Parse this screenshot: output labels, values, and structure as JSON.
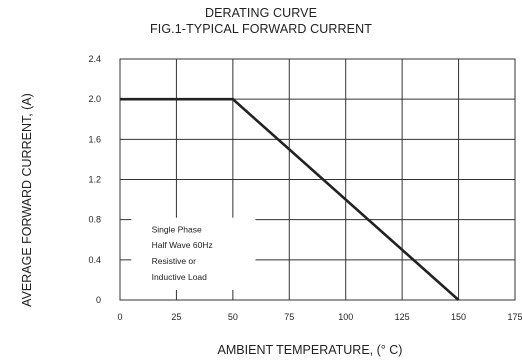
{
  "chart_data": {
    "type": "line",
    "title": "DERATING CURVE",
    "subtitle": "FIG.1-TYPICAL FORWARD CURRENT",
    "xlabel": "AMBIENT TEMPERATURE, (° C)",
    "ylabel": "AVERAGE FORWARD CURRENT,  (A)",
    "xlim": [
      0,
      175
    ],
    "ylim": [
      0,
      2.4
    ],
    "x_ticks": [
      "0",
      "25",
      "50",
      "75",
      "100",
      "125",
      "150",
      "175"
    ],
    "y_ticks": [
      "0",
      "0.4",
      "0.8",
      "1.2",
      "1.6",
      "2.0",
      "2.4"
    ],
    "grid": true,
    "series": [
      {
        "x": [
          0,
          50,
          150
        ],
        "y": [
          2.0,
          2.0,
          0
        ]
      }
    ],
    "annotation": [
      "Single Phase",
      "Half Wave 60Hz",
      "Resistive or",
      "Inductive Load"
    ],
    "line_color": "#222222"
  }
}
